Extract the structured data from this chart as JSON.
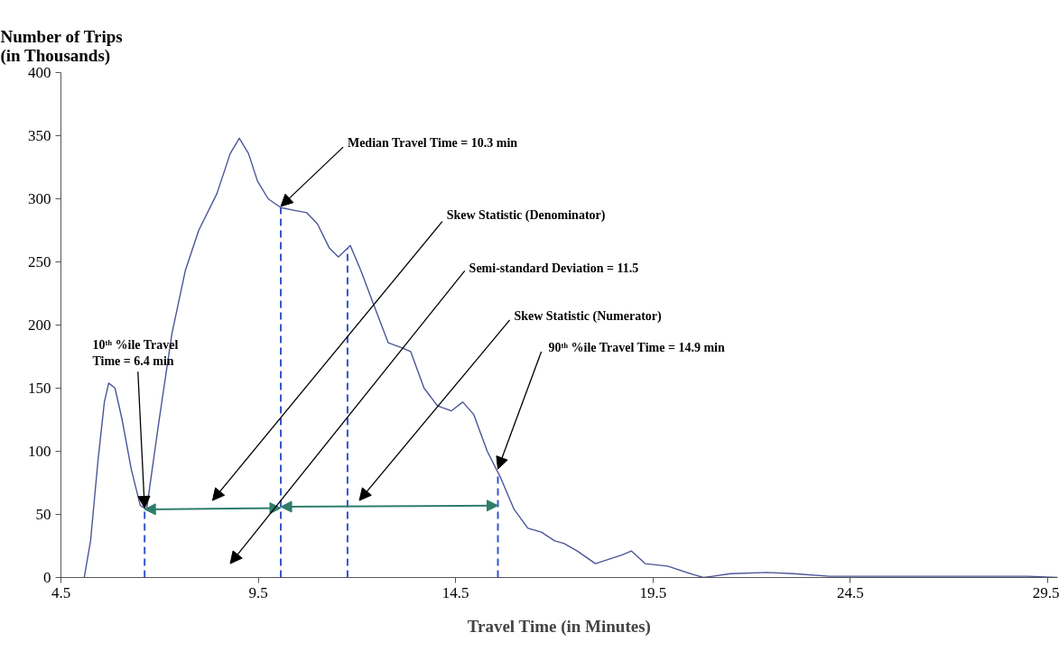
{
  "chart_data": {
    "type": "line",
    "ylabel": "Number of Trips (in Thousands)",
    "xlabel": "Travel Time (in Minutes)",
    "x": [
      5.09,
      5.25,
      5.44,
      5.6,
      5.71,
      5.87,
      6.05,
      6.28,
      6.51,
      6.67,
      6.97,
      7.31,
      7.65,
      7.99,
      8.45,
      8.79,
      9.02,
      9.25,
      9.48,
      9.75,
      10.07,
      10.39,
      10.73,
      11.0,
      11.3,
      11.53,
      11.83,
      12.1,
      12.45,
      12.79,
      13.13,
      13.36,
      13.7,
      14.04,
      14.39,
      14.68,
      14.96,
      15.3,
      15.64,
      15.98,
      16.33,
      16.67,
      17.01,
      17.24,
      17.58,
      18.04,
      18.72,
      18.95,
      19.3,
      19.87,
      20.55,
      20.78,
      21.01,
      21.46,
      22.38,
      23.06,
      23.97,
      24.89,
      26.26,
      28.08,
      29.0,
      29.75
    ],
    "series": [
      {
        "color": "#4b5597",
        "values": [
          0,
          29,
          93,
          139,
          154,
          150,
          125,
          86,
          57,
          54,
          121,
          193,
          243,
          275,
          304,
          336,
          348,
          336,
          314,
          300,
          293,
          291,
          289,
          280,
          261,
          254,
          263,
          243,
          214,
          186,
          182,
          179,
          150,
          136,
          132,
          139,
          129,
          100,
          79,
          54,
          39,
          36,
          29,
          27,
          21,
          11,
          18,
          21,
          11,
          9,
          2,
          0,
          1,
          3,
          4,
          3,
          1,
          1,
          1,
          1,
          1,
          0
        ]
      }
    ],
    "xlim": [
      4.5,
      29.75
    ],
    "ylim": [
      0,
      400
    ],
    "xticks": [
      4.5,
      9.5,
      14.5,
      19.5,
      24.5,
      29.5
    ],
    "yticks": [
      0,
      50,
      100,
      150,
      200,
      250,
      300,
      350,
      400
    ],
    "grid": false,
    "marker": "none",
    "line_style": "solid",
    "ref_lines": [
      {
        "axis": "x",
        "value": 6.62,
        "color": "#3355cc",
        "line_style": "dashed"
      },
      {
        "axis": "x",
        "value": 10.07,
        "color": "#3355cc",
        "line_style": "dashed"
      },
      {
        "axis": "x",
        "value": 11.76,
        "color": "#3355cc",
        "line_style": "dashed"
      },
      {
        "axis": "x",
        "value": 15.57,
        "color": "#3355cc",
        "line_style": "dashed"
      }
    ],
    "annotations": [
      {
        "text": "10ᵗʰ %ile Travel Time = 6.4 min",
        "x": 6.62,
        "y": 55
      },
      {
        "text": "Median Travel Time = 10.3 min",
        "x": 10.07,
        "y": 294
      },
      "Skew Statistic (Denominator)",
      "Semi-standard Deviation = 11.5",
      "Skew Statistic (Numerator)",
      {
        "text": "90ᵗʰ %ile Travel Time = 14.9 min",
        "x": 15.57,
        "y": 86
      }
    ]
  }
}
